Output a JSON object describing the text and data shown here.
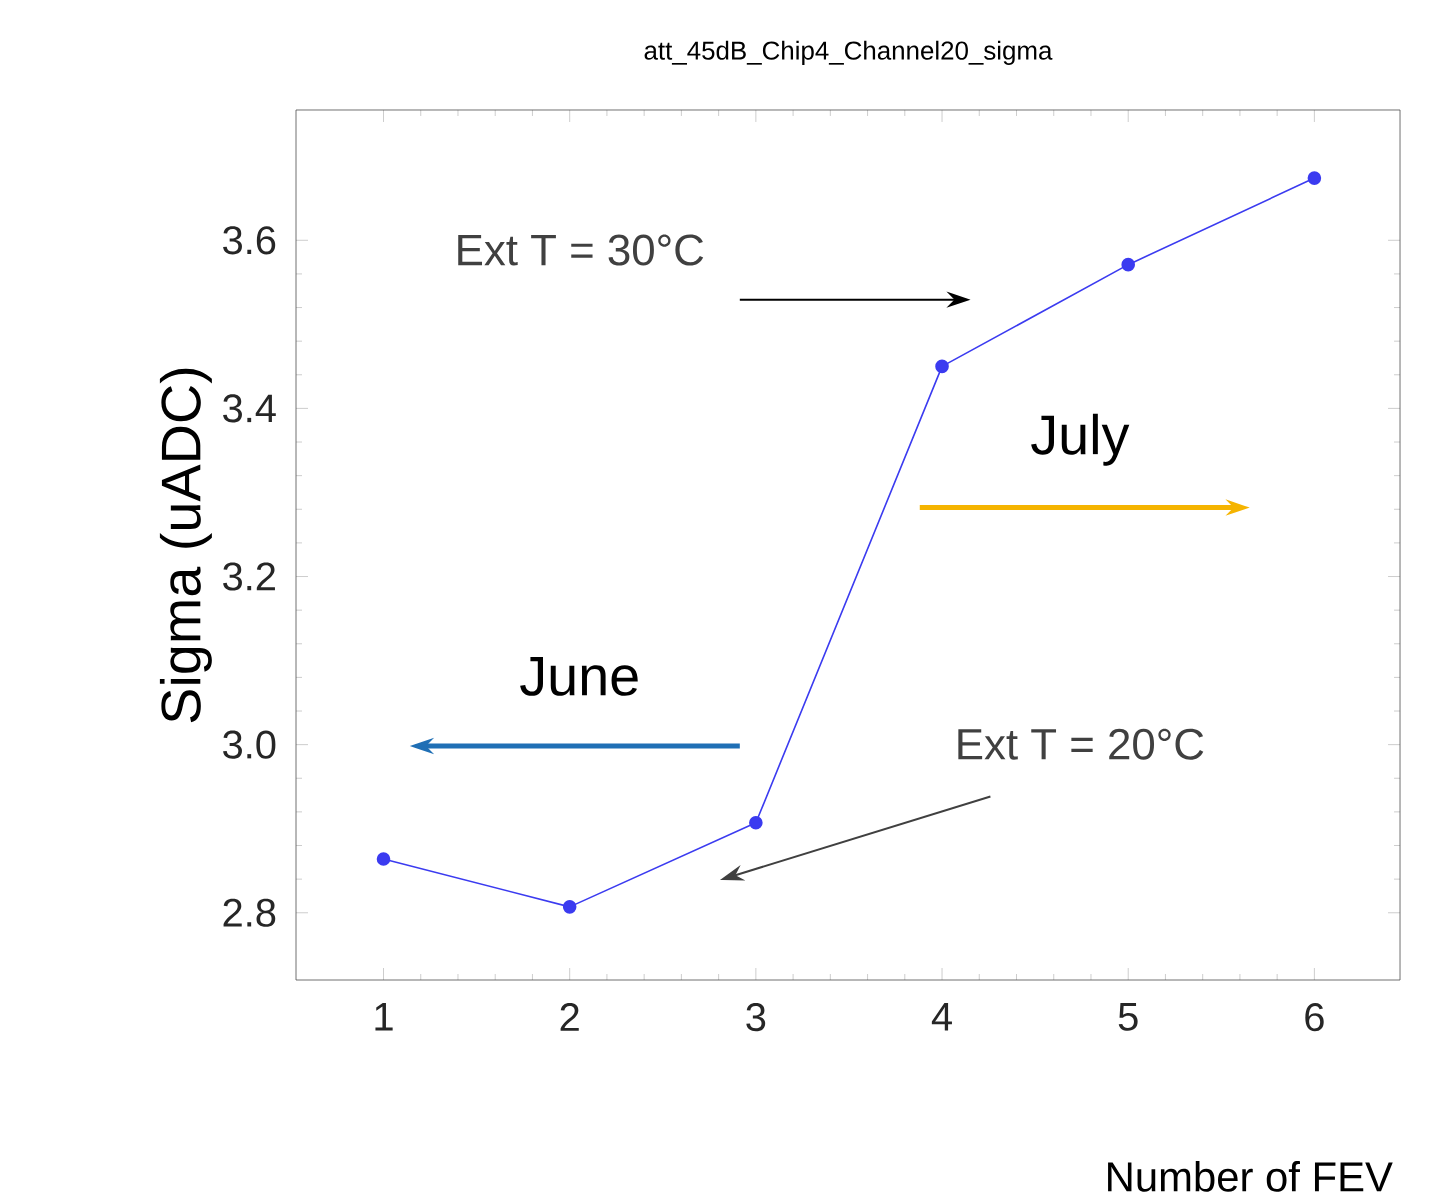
{
  "chart_data": {
    "type": "line",
    "title": "att_45dB_Chip4_Channel20_sigma",
    "xlabel": "Number of FEV",
    "ylabel": "Sigma (uADC)",
    "x": [
      1,
      2,
      3,
      4,
      5,
      6
    ],
    "series": [
      {
        "color": "#3b3bf0",
        "values": [
          2.864,
          2.807,
          2.907,
          3.45,
          3.571,
          3.674
        ]
      }
    ],
    "xlim": [
      0.53,
      6.46
    ],
    "ylim": [
      2.72,
      3.755
    ],
    "xticks": [
      1,
      2,
      3,
      4,
      5,
      6
    ],
    "yticks": [
      2.8,
      {
        "value": 3.0,
        "label": "3.0"
      },
      3.2,
      3.4,
      3.6
    ],
    "marker": "circle",
    "annotations": [
      "Ext T = 30°C",
      "July",
      "June",
      "Ext T = 20°C"
    ]
  }
}
